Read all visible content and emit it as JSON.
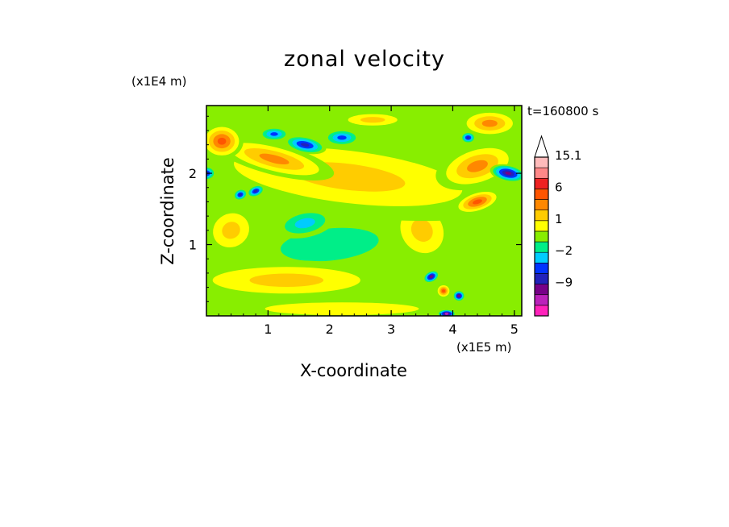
{
  "chart_data": {
    "type": "heatmap",
    "title": "zonal velocity",
    "xlabel": "X-coordinate",
    "ylabel": "Z-coordinate",
    "x_unit_label": "(x1E5 m)",
    "y_unit_label": "(x1E4 m)",
    "time_label": "t=160800 s",
    "xlim": [
      0,
      5.12
    ],
    "ylim": [
      0,
      2.95
    ],
    "x_ticks": [
      {
        "value": 1,
        "label": "1"
      },
      {
        "value": 2,
        "label": "2"
      },
      {
        "value": 3,
        "label": "3"
      },
      {
        "value": 4,
        "label": "4"
      },
      {
        "value": 5,
        "label": "5"
      }
    ],
    "y_ticks": [
      {
        "value": 1,
        "label": "1"
      },
      {
        "value": 2,
        "label": "2"
      }
    ],
    "colorbar": {
      "levels": [
        {
          "color": "#ff22bb"
        },
        {
          "color": "#bb22bb"
        },
        {
          "color": "#770088"
        },
        {
          "color": "#2222bb"
        },
        {
          "color": "#0033ff"
        },
        {
          "color": "#00ccff"
        },
        {
          "color": "#00ee88"
        },
        {
          "color": "#88ee00"
        },
        {
          "color": "#ffff00"
        },
        {
          "color": "#ffcc00"
        },
        {
          "color": "#ff8800"
        },
        {
          "color": "#ff5500"
        },
        {
          "color": "#ee2222"
        },
        {
          "color": "#ff8888"
        },
        {
          "color": "#ffbbbb"
        }
      ],
      "extend_top": true,
      "tick_labels": [
        {
          "label": "15.1",
          "level_index": 14
        },
        {
          "label": "6",
          "level_index": 11
        },
        {
          "label": "1",
          "level_index": 8
        },
        {
          "label": "−2",
          "level_index": 5
        },
        {
          "label": "−9",
          "level_index": 2
        }
      ]
    },
    "blobs": [
      {
        "x": 2.3,
        "z": 1.95,
        "rx": 2.8,
        "rz": 0.55,
        "v": 3,
        "rot": -0.12
      },
      {
        "x": 1.1,
        "z": 2.2,
        "rx": 1.0,
        "rz": 0.22,
        "v": 4,
        "rot": -0.25
      },
      {
        "x": 0.25,
        "z": 2.45,
        "rx": 0.35,
        "rz": 0.25,
        "v": 5,
        "rot": 0
      },
      {
        "x": 1.6,
        "z": 2.4,
        "rx": 0.35,
        "rz": 0.12,
        "v": -5,
        "rot": -0.2
      },
      {
        "x": 1.1,
        "z": 2.55,
        "rx": 0.25,
        "rz": 0.1,
        "v": -4,
        "rot": 0
      },
      {
        "x": 0.8,
        "z": 1.75,
        "rx": 0.15,
        "rz": 0.08,
        "v": -6,
        "rot": 0.4
      },
      {
        "x": 0.55,
        "z": 1.7,
        "rx": 0.12,
        "rz": 0.08,
        "v": -6,
        "rot": 0.4
      },
      {
        "x": 0.0,
        "z": 2.0,
        "rx": 0.15,
        "rz": 0.1,
        "v": -5,
        "rot": 0
      },
      {
        "x": 2.2,
        "z": 2.5,
        "rx": 0.3,
        "rz": 0.12,
        "v": -3,
        "rot": 0
      },
      {
        "x": 1.6,
        "z": 1.3,
        "rx": 0.5,
        "rz": 0.2,
        "v": -2,
        "rot": 0.2
      },
      {
        "x": 2.0,
        "z": 1.0,
        "rx": 1.6,
        "rz": 0.45,
        "v": -0.5,
        "rot": 0.1
      },
      {
        "x": 1.3,
        "z": 0.5,
        "rx": 1.8,
        "rz": 0.28,
        "v": 2.2,
        "rot": 0
      },
      {
        "x": 2.2,
        "z": 0.1,
        "rx": 2.5,
        "rz": 0.18,
        "v": 1.6,
        "rot": 0
      },
      {
        "x": 0.4,
        "z": 1.2,
        "rx": 0.45,
        "rz": 0.35,
        "v": 2.5,
        "rot": 0.5
      },
      {
        "x": 4.4,
        "z": 2.1,
        "rx": 0.7,
        "rz": 0.3,
        "v": 3.5,
        "rot": 0.3
      },
      {
        "x": 4.9,
        "z": 2.0,
        "rx": 0.3,
        "rz": 0.12,
        "v": -8,
        "rot": -0.2
      },
      {
        "x": 4.4,
        "z": 1.6,
        "rx": 0.4,
        "rz": 0.15,
        "v": 5,
        "rot": 0.3
      },
      {
        "x": 3.65,
        "z": 0.55,
        "rx": 0.14,
        "rz": 0.08,
        "v": -7,
        "rot": 0.5
      },
      {
        "x": 3.85,
        "z": 0.35,
        "rx": 0.12,
        "rz": 0.1,
        "v": 6,
        "rot": 0
      },
      {
        "x": 4.1,
        "z": 0.28,
        "rx": 0.1,
        "rz": 0.08,
        "v": -7,
        "rot": 0
      },
      {
        "x": 3.9,
        "z": 0.03,
        "rx": 0.15,
        "rz": 0.06,
        "v": -10,
        "rot": 0
      },
      {
        "x": 4.6,
        "z": 2.7,
        "rx": 0.5,
        "rz": 0.2,
        "v": 4,
        "rot": 0
      },
      {
        "x": 4.25,
        "z": 2.5,
        "rx": 0.12,
        "rz": 0.08,
        "v": -5,
        "rot": 0
      },
      {
        "x": 3.5,
        "z": 1.2,
        "rx": 0.5,
        "rz": 0.5,
        "v": 2.5,
        "rot": 0.6
      },
      {
        "x": 2.7,
        "z": 2.75,
        "rx": 0.6,
        "rz": 0.12,
        "v": 3,
        "rot": 0
      }
    ]
  }
}
